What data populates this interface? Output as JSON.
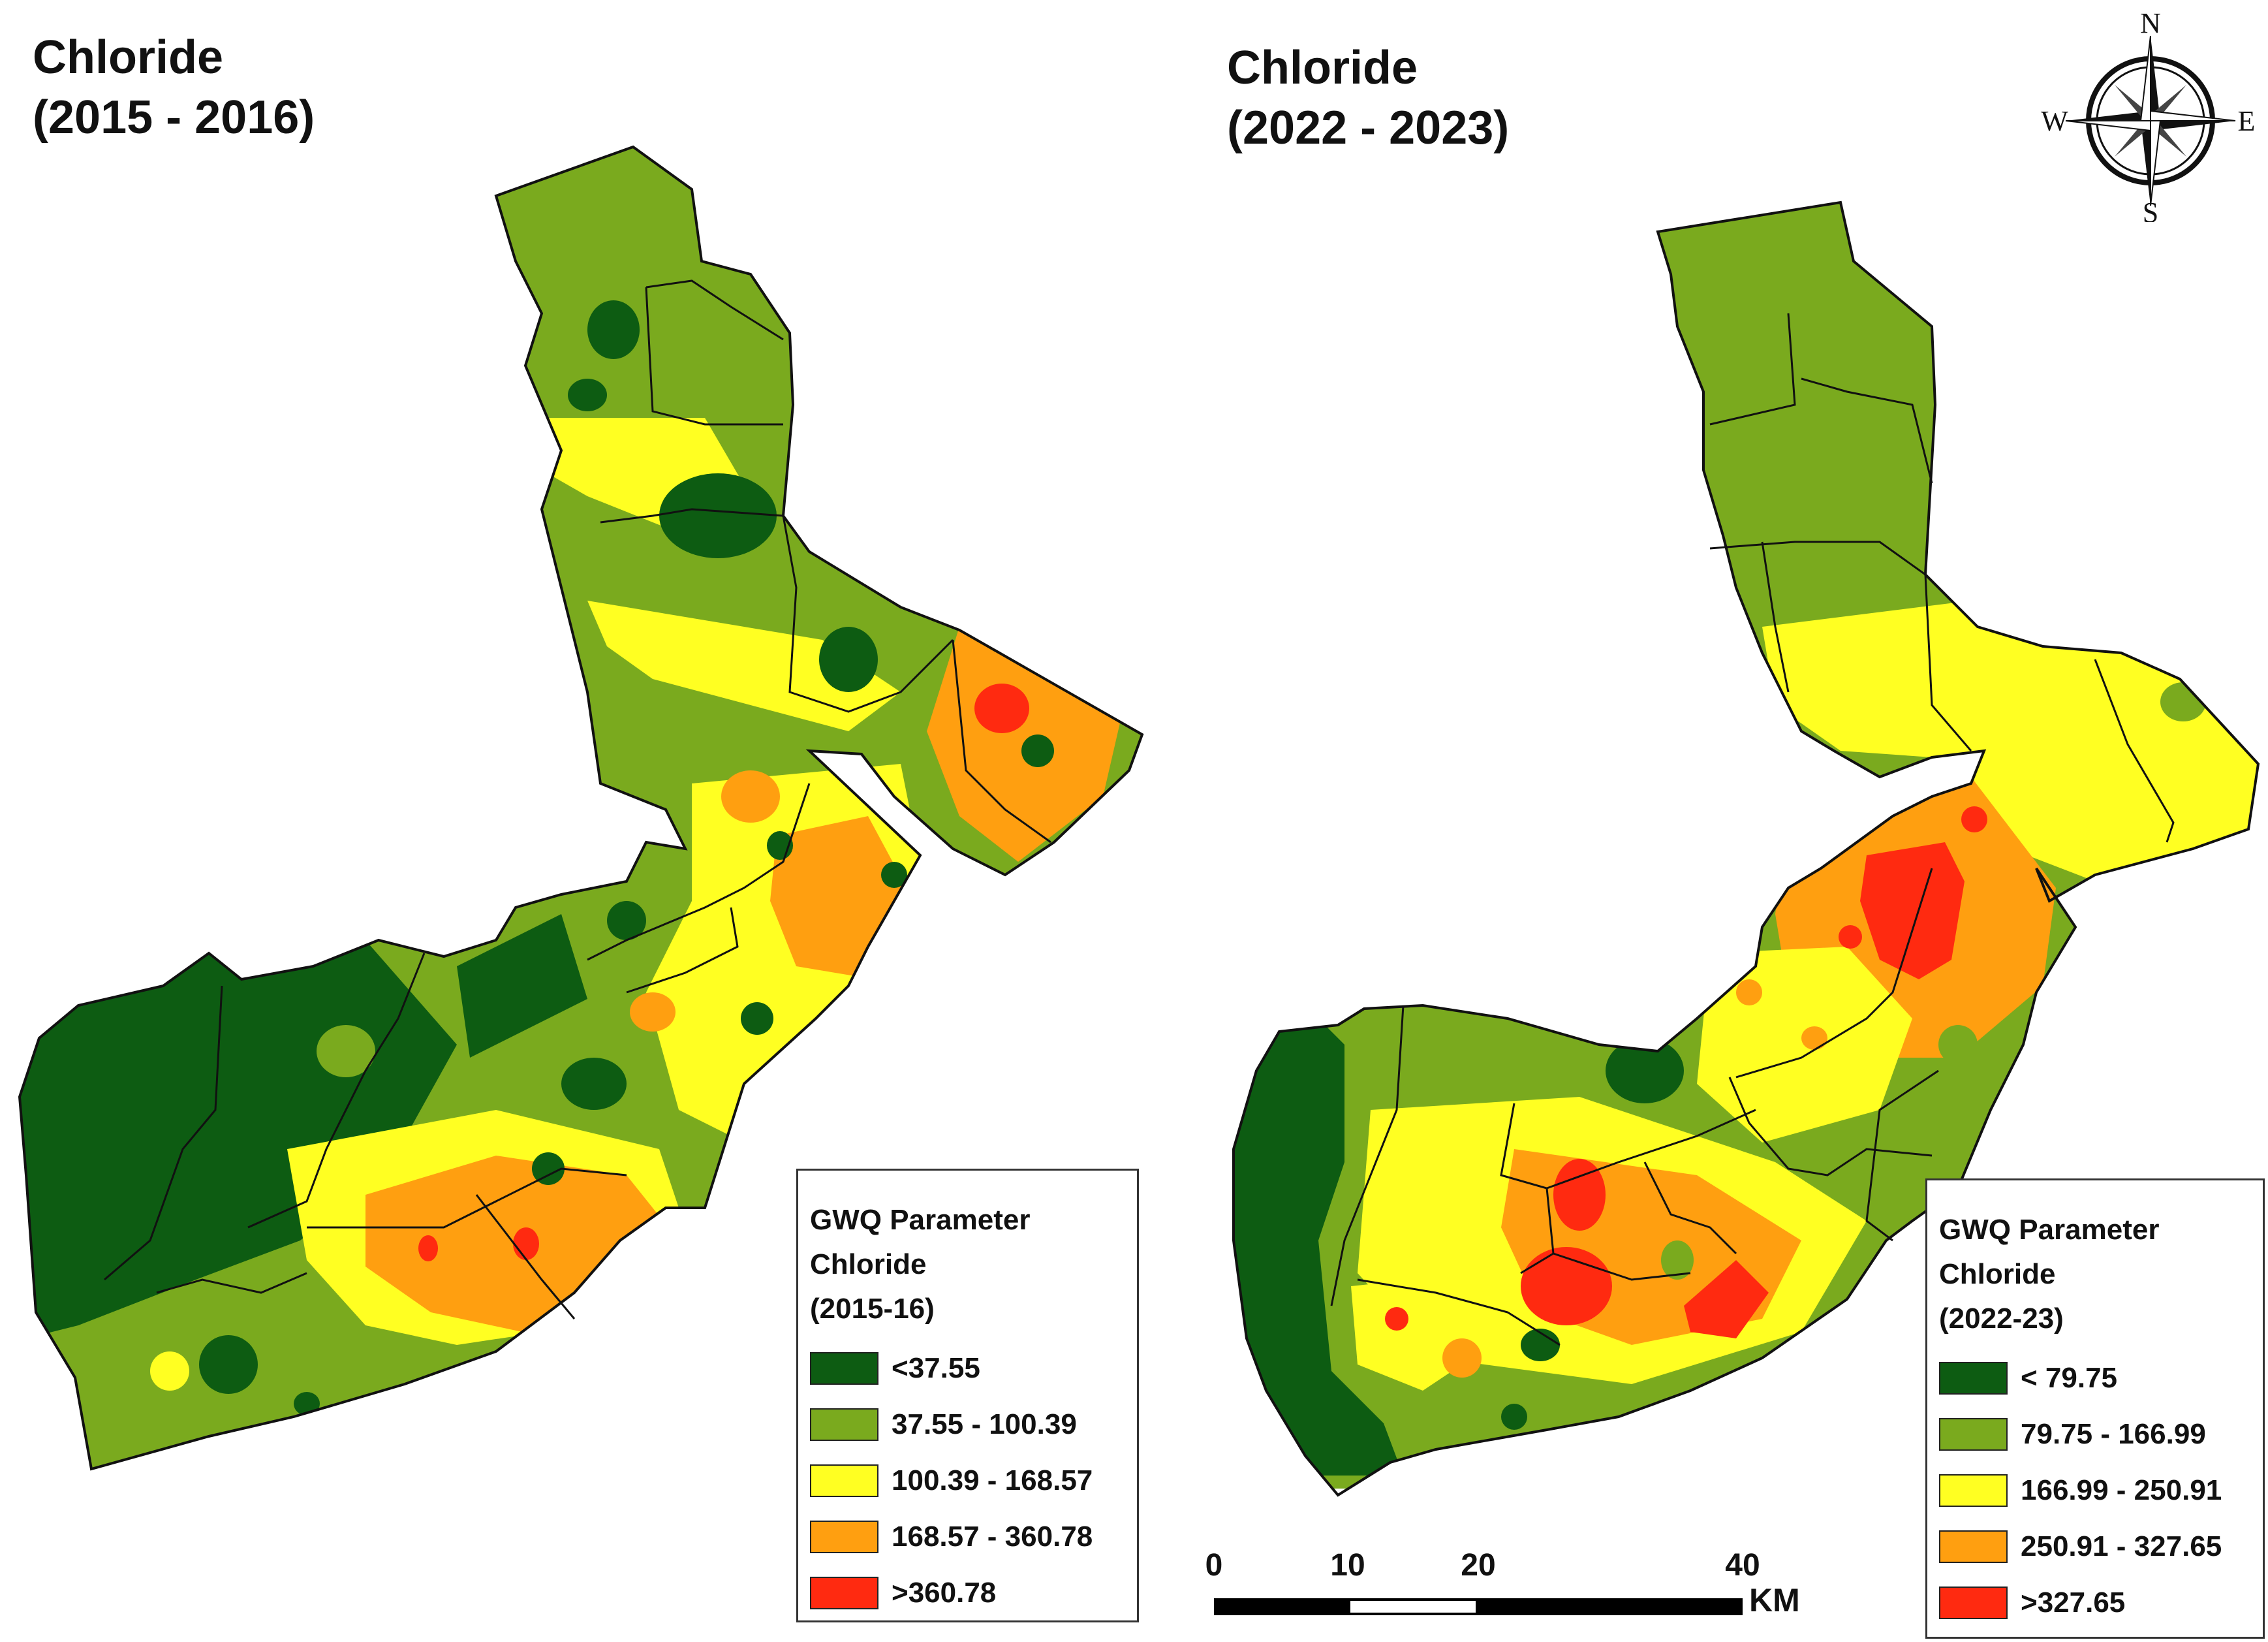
{
  "maps": {
    "left": {
      "title_line1": "Chloride",
      "title_line2": "(2015 - 2016)",
      "legend": {
        "heading_line1": "GWQ Parameter",
        "heading_line2": "Chloride",
        "heading_line3": "(2015-16)",
        "classes": [
          {
            "label": "<37.55",
            "color": "#0d5c12"
          },
          {
            "label": "37.55 - 100.39",
            "color": "#7aaa1e"
          },
          {
            "label": "100.39 - 168.57",
            "color": "#ffff22"
          },
          {
            "label": "168.57 - 360.78",
            "color": "#ff9f10"
          },
          {
            "label": ">360.78",
            "color": "#ff2a10"
          }
        ]
      }
    },
    "right": {
      "title_line1": "Chloride",
      "title_line2": "(2022 - 2023)",
      "legend": {
        "heading_line1": "GWQ Parameter",
        "heading_line2": "Chloride",
        "heading_line3": "(2022-23)",
        "classes": [
          {
            "label": "< 79.75",
            "color": "#0d5c12"
          },
          {
            "label": "79.75 - 166.99",
            "color": "#7aaa1e"
          },
          {
            "label": "166.99 - 250.91",
            "color": "#ffff22"
          },
          {
            "label": "250.91 - 327.65",
            "color": "#ff9f10"
          },
          {
            "label": ">327.65",
            "color": "#ff2a10"
          }
        ]
      }
    }
  },
  "compass": {
    "north": "N",
    "south": "S",
    "east": "E",
    "west": "W"
  },
  "scale_bar": {
    "ticks": [
      "0",
      "10",
      "20",
      "40"
    ],
    "unit": "KM"
  }
}
